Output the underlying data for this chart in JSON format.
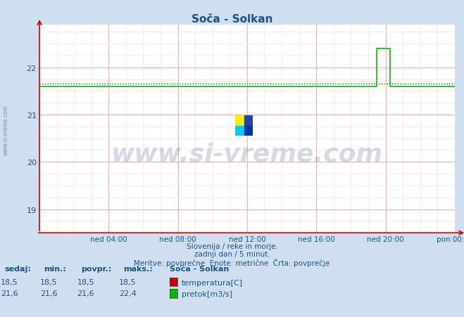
{
  "title": "Soča - Solkan",
  "bg_color": "#d0dff0",
  "plot_bg_color": "#ffffff",
  "grid_color_major": "#ffaaaa",
  "grid_color_minor": "#ffe0e0",
  "xlim": [
    0,
    288
  ],
  "ylim": [
    18.5,
    22.9
  ],
  "yticks": [
    19,
    20,
    21,
    22
  ],
  "xtick_labels": [
    "ned 04:00",
    "ned 08:00",
    "ned 12:00",
    "ned 16:00",
    "ned 20:00",
    "pon 00:00"
  ],
  "xtick_positions": [
    48,
    96,
    144,
    192,
    240,
    288
  ],
  "flow_base": 21.6,
  "flow_spike_max": 22.4,
  "spike_start": 234,
  "spike_end": 243,
  "avg_line_value": 21.65,
  "temp_color": "#cc0000",
  "flow_color": "#00bb00",
  "avg_line_color": "#006600",
  "axis_arrow_color": "#cc0000",
  "subtitle1": "Slovenija / reke in morje.",
  "subtitle2": "zadnji dan / 5 minut.",
  "subtitle3": "Meritve: povprečne  Enote: metrične  Črta: povprečje",
  "legend_title": "Soča - Solkan",
  "legend_items": [
    "temperatura[C]",
    "pretok[m3/s]"
  ],
  "legend_colors": [
    "#cc0000",
    "#00bb00"
  ],
  "table_headers": [
    "sedaj:",
    "min.:",
    "povpr.:",
    "maks.:"
  ],
  "table_temp": [
    "18,5",
    "18,5",
    "18,5",
    "18,5"
  ],
  "table_flow": [
    "21,6",
    "21,6",
    "21,6",
    "22,4"
  ],
  "watermark": "www.si-vreme.com",
  "watermark_color": "#1a3a6a",
  "watermark_alpha": 0.18,
  "side_text_color": "#4477aa",
  "text_color": "#1a5588"
}
